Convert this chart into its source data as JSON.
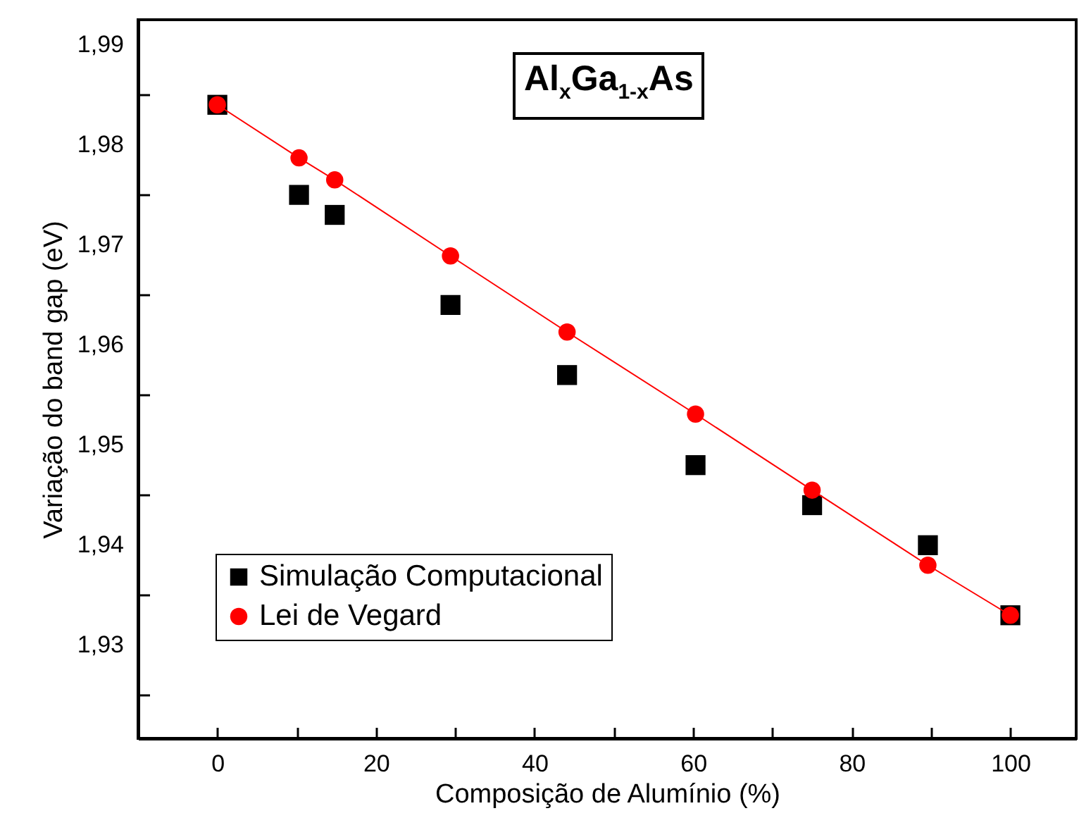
{
  "chart_data": {
    "type": "scatter",
    "title": "Al$_{x}$Ga$_{1-x}$As",
    "xlabel": "Composição de Alumínio (%)",
    "ylabel": "Variação do band gap (eV)",
    "x": [
      0,
      10.3,
      14.8,
      29.4,
      44.1,
      60.3,
      75,
      89.6,
      100
    ],
    "series": [
      {
        "name": "Simulação Computacional",
        "type": "scatter",
        "marker": "square",
        "color": "#000000",
        "values": [
          1.984,
          1.975,
          1.973,
          1.964,
          1.957,
          1.948,
          1.944,
          1.94,
          1.933
        ]
      },
      {
        "name": "Lei de Vegard",
        "type": "line",
        "marker": "circle",
        "line_style": "solid",
        "color": "#ff0000",
        "values": [
          1.984,
          1.9787,
          1.9765,
          1.9689,
          1.9613,
          1.9531,
          1.9455,
          1.938,
          1.933
        ]
      }
    ],
    "xlim": [
      -10,
      108.3
    ],
    "ylim": [
      1.9207,
      1.9925
    ],
    "xticks": [
      0,
      {
        "value": 10,
        "label": null
      },
      20,
      {
        "value": 30,
        "label": null
      },
      40,
      {
        "value": 50,
        "label": null
      },
      60,
      {
        "value": 70,
        "label": null
      },
      80,
      {
        "value": 90,
        "label": null
      },
      100
    ],
    "yticks": [
      {
        "value": 1.925,
        "label": null
      },
      {
        "value": 1.93,
        "label": "1,93"
      },
      {
        "value": 1.935,
        "label": null
      },
      {
        "value": 1.94,
        "label": "1,94"
      },
      {
        "value": 1.945,
        "label": null
      },
      {
        "value": 1.95,
        "label": "1,95"
      },
      {
        "value": 1.955,
        "label": null
      },
      {
        "value": 1.96,
        "label": "1,96"
      },
      {
        "value": 1.965,
        "label": null
      },
      {
        "value": 1.97,
        "label": "1,97"
      },
      {
        "value": 1.975,
        "label": null
      },
      {
        "value": 1.98,
        "label": "1,98"
      },
      {
        "value": 1.985,
        "label": null
      },
      {
        "value": 1.99,
        "label": "1,99"
      }
    ],
    "grid": false,
    "legend": "bottom left"
  }
}
